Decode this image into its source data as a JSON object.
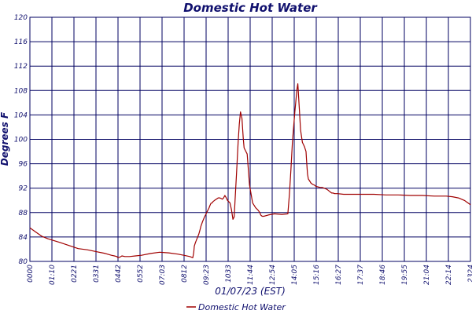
{
  "chart_data": {
    "type": "line",
    "title": "Domestic Hot Water",
    "xlabel": "01/07/23 (EST)",
    "ylabel": "Degrees F",
    "ylim": [
      80,
      120
    ],
    "yticks": [
      80,
      84,
      88,
      92,
      96,
      100,
      104,
      108,
      112,
      116,
      120
    ],
    "xlim": [
      0,
      1460
    ],
    "xticks": [
      "0000",
      "01:10",
      "0221",
      "0331",
      "0442",
      "0552",
      "07:03",
      "0812",
      "09:23",
      "1033",
      "11:44",
      "12:54",
      "14:05",
      "15:16",
      "16:27",
      "17:37",
      "18:46",
      "19:55",
      "21:04",
      "22:14",
      "2324"
    ],
    "grid": true,
    "legend_position": "bottom-center",
    "colors": {
      "series": "#a00000",
      "grid": "#000060",
      "text": "#10106e"
    },
    "series": [
      {
        "name": "Domestic Hot Water",
        "x": [
          0,
          20,
          40,
          60,
          80,
          100,
          130,
          160,
          190,
          220,
          250,
          270,
          280,
          288,
          292,
          298,
          305,
          315,
          330,
          350,
          370,
          400,
          430,
          460,
          490,
          510,
          530,
          540,
          543,
          545,
          548,
          552,
          556,
          560,
          563,
          567,
          572,
          578,
          584,
          588,
          592,
          594,
          597,
          600,
          604,
          607,
          612,
          618,
          624,
          630,
          638,
          642,
          646,
          650,
          655,
          663,
          668,
          673,
          677,
          680,
          685,
          690,
          694,
          698,
          703,
          707,
          710,
          716,
          720,
          728,
          738,
          748,
          756,
          762,
          765,
          770,
          775,
          790,
          810,
          835,
          855,
          860,
          865,
          870,
          878,
          885,
          888,
          893,
          897,
          903,
          910,
          915,
          917,
          920,
          923,
          932,
          938,
          943,
          948,
          955,
          963,
          970,
          975,
          980,
          985,
          990,
          995,
          1000,
          1005,
          1010,
          1020,
          1040,
          1070,
          1100,
          1140,
          1180,
          1220,
          1260,
          1300,
          1340,
          1380,
          1400,
          1420,
          1440,
          1460
        ],
        "y": [
          85.5,
          84.8,
          84.1,
          83.7,
          83.4,
          83.1,
          82.6,
          82.1,
          81.9,
          81.6,
          81.3,
          81.0,
          80.9,
          80.8,
          80.6,
          80.7,
          80.9,
          80.8,
          80.8,
          80.9,
          81.0,
          81.3,
          81.5,
          81.4,
          81.2,
          81.0,
          80.8,
          80.6,
          81.5,
          82.5,
          83.0,
          83.5,
          84.0,
          84.5,
          85.0,
          85.8,
          86.5,
          87.2,
          87.8,
          88.2,
          88.6,
          88.8,
          89.2,
          89.5,
          89.6,
          89.8,
          90.0,
          90.2,
          90.4,
          90.4,
          90.2,
          90.4,
          90.8,
          90.5,
          90.0,
          89.6,
          88.5,
          86.9,
          87.3,
          90.0,
          94.5,
          99.5,
          102.5,
          104.5,
          103.4,
          100.2,
          98.6,
          98.0,
          97.6,
          92.5,
          89.6,
          88.8,
          88.4,
          88.0,
          87.6,
          87.4,
          87.4,
          87.6,
          87.8,
          87.7,
          87.8,
          91.0,
          95.0,
          99.5,
          104.5,
          108.2,
          109.1,
          105.0,
          101.5,
          99.5,
          98.8,
          98.0,
          96.5,
          94.3,
          93.5,
          92.8,
          92.6,
          92.5,
          92.3,
          92.2,
          92.1,
          92.1,
          92.0,
          91.9,
          91.8,
          91.6,
          91.4,
          91.2,
          91.2,
          91.1,
          91.1,
          91.0,
          91.0,
          91.0,
          91.0,
          90.9,
          90.9,
          90.8,
          90.8,
          90.7,
          90.7,
          90.6,
          90.4,
          90.0,
          89.3
        ]
      }
    ]
  }
}
